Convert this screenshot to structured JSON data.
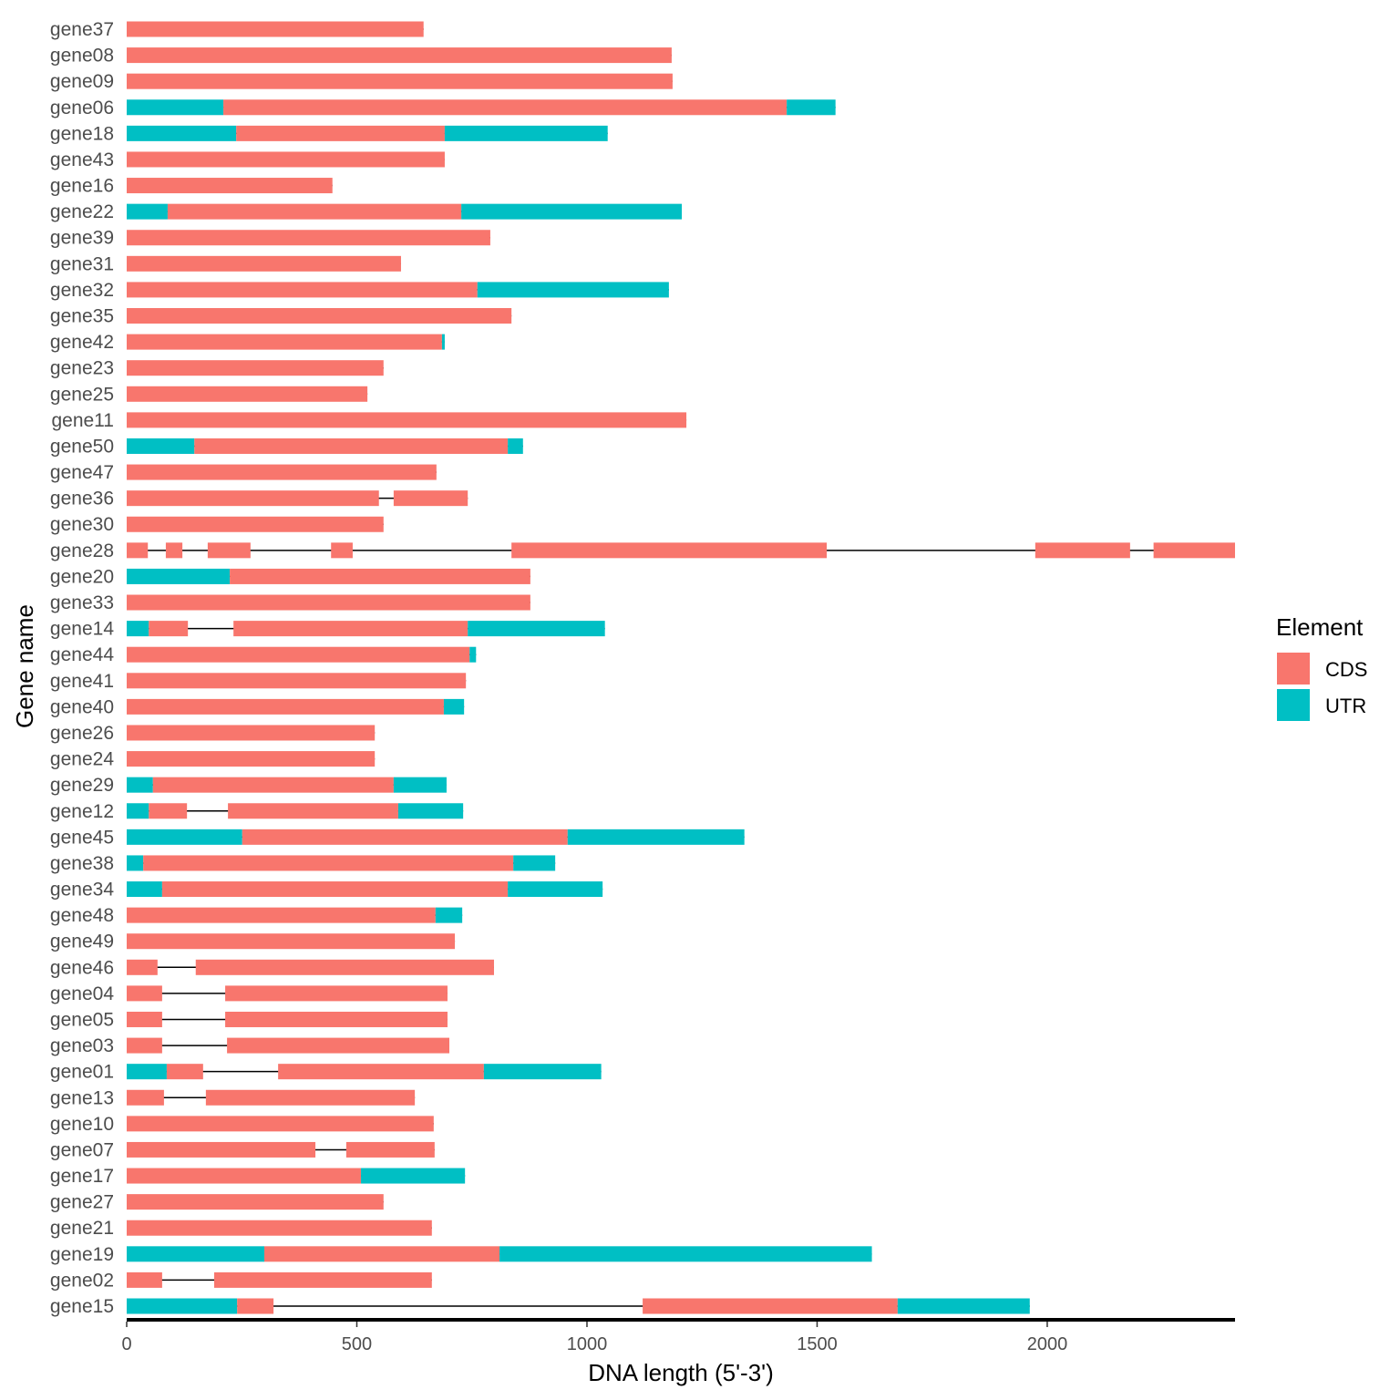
{
  "chart_data": {
    "type": "bar",
    "subtype": "gene-structure",
    "xlabel": "DNA length (5'-3')",
    "ylabel": "Gene name",
    "xlim": [
      0,
      2408
    ],
    "xticks": [
      0,
      500,
      1000,
      1500,
      2000
    ],
    "grid": false,
    "legend": {
      "title": "Element",
      "placement": "right",
      "entries": [
        {
          "label": "CDS",
          "color": "#F8766D"
        },
        {
          "label": "UTR",
          "color": "#00BFC4"
        }
      ]
    },
    "intron_color": "#000000",
    "genes": [
      {
        "name": "gene37",
        "segments": [
          [
            0,
            645,
            "CDS"
          ]
        ]
      },
      {
        "name": "gene08",
        "segments": [
          [
            0,
            1184,
            "CDS"
          ]
        ]
      },
      {
        "name": "gene09",
        "segments": [
          [
            0,
            1186,
            "CDS"
          ]
        ]
      },
      {
        "name": "gene06",
        "segments": [
          [
            0,
            210,
            "UTR"
          ],
          [
            210,
            1434,
            "CDS"
          ],
          [
            1434,
            1540,
            "UTR"
          ]
        ]
      },
      {
        "name": "gene18",
        "segments": [
          [
            0,
            238,
            "UTR"
          ],
          [
            238,
            691,
            "CDS"
          ],
          [
            691,
            1045,
            "UTR"
          ]
        ]
      },
      {
        "name": "gene43",
        "segments": [
          [
            0,
            691,
            "CDS"
          ]
        ]
      },
      {
        "name": "gene16",
        "segments": [
          [
            0,
            447,
            "CDS"
          ]
        ]
      },
      {
        "name": "gene22",
        "segments": [
          [
            0,
            89,
            "UTR"
          ],
          [
            89,
            727,
            "CDS"
          ],
          [
            727,
            1206,
            "UTR"
          ]
        ]
      },
      {
        "name": "gene39",
        "segments": [
          [
            0,
            790,
            "CDS"
          ]
        ]
      },
      {
        "name": "gene31",
        "segments": [
          [
            0,
            596,
            "CDS"
          ]
        ]
      },
      {
        "name": "gene32",
        "segments": [
          [
            0,
            762,
            "CDS"
          ],
          [
            762,
            1178,
            "UTR"
          ]
        ]
      },
      {
        "name": "gene35",
        "segments": [
          [
            0,
            836,
            "CDS"
          ]
        ]
      },
      {
        "name": "gene42",
        "segments": [
          [
            0,
            685,
            "CDS"
          ],
          [
            685,
            691,
            "UTR"
          ]
        ]
      },
      {
        "name": "gene23",
        "segments": [
          [
            0,
            558,
            "CDS"
          ]
        ]
      },
      {
        "name": "gene25",
        "segments": [
          [
            0,
            523,
            "CDS"
          ]
        ]
      },
      {
        "name": "gene11",
        "segments": [
          [
            0,
            1216,
            "CDS"
          ]
        ]
      },
      {
        "name": "gene50",
        "segments": [
          [
            0,
            147,
            "UTR"
          ],
          [
            147,
            828,
            "CDS"
          ],
          [
            828,
            861,
            "UTR"
          ]
        ]
      },
      {
        "name": "gene47",
        "segments": [
          [
            0,
            673,
            "CDS"
          ]
        ]
      },
      {
        "name": "gene36",
        "segments": [
          [
            0,
            548,
            "CDS"
          ],
          [
            580,
            741,
            "CDS"
          ]
        ]
      },
      {
        "name": "gene30",
        "segments": [
          [
            0,
            558,
            "CDS"
          ]
        ]
      },
      {
        "name": "gene28",
        "segments": [
          [
            0,
            46,
            "CDS"
          ],
          [
            85,
            121,
            "CDS"
          ],
          [
            176,
            269,
            "CDS"
          ],
          [
            444,
            491,
            "CDS"
          ],
          [
            836,
            1521,
            "CDS"
          ],
          [
            1974,
            2180,
            "CDS"
          ],
          [
            2231,
            2408,
            "CDS"
          ]
        ]
      },
      {
        "name": "gene20",
        "segments": [
          [
            0,
            224,
            "UTR"
          ],
          [
            224,
            877,
            "CDS"
          ]
        ]
      },
      {
        "name": "gene33",
        "segments": [
          [
            0,
            877,
            "CDS"
          ]
        ]
      },
      {
        "name": "gene14",
        "segments": [
          [
            0,
            48,
            "UTR"
          ],
          [
            48,
            133,
            "CDS"
          ],
          [
            232,
            741,
            "CDS"
          ],
          [
            741,
            1039,
            "UTR"
          ]
        ]
      },
      {
        "name": "gene44",
        "segments": [
          [
            0,
            745,
            "CDS"
          ],
          [
            745,
            759,
            "UTR"
          ]
        ]
      },
      {
        "name": "gene41",
        "segments": [
          [
            0,
            737,
            "CDS"
          ]
        ]
      },
      {
        "name": "gene40",
        "segments": [
          [
            0,
            689,
            "CDS"
          ],
          [
            689,
            733,
            "UTR"
          ]
        ]
      },
      {
        "name": "gene26",
        "segments": [
          [
            0,
            539,
            "CDS"
          ]
        ]
      },
      {
        "name": "gene24",
        "segments": [
          [
            0,
            539,
            "CDS"
          ]
        ]
      },
      {
        "name": "gene29",
        "segments": [
          [
            0,
            57,
            "UTR"
          ],
          [
            57,
            580,
            "CDS"
          ],
          [
            580,
            695,
            "UTR"
          ]
        ]
      },
      {
        "name": "gene12",
        "segments": [
          [
            0,
            48,
            "UTR"
          ],
          [
            48,
            131,
            "CDS"
          ],
          [
            220,
            590,
            "CDS"
          ],
          [
            590,
            731,
            "UTR"
          ]
        ]
      },
      {
        "name": "gene45",
        "segments": [
          [
            0,
            251,
            "UTR"
          ],
          [
            251,
            958,
            "CDS"
          ],
          [
            958,
            1342,
            "UTR"
          ]
        ]
      },
      {
        "name": "gene38",
        "segments": [
          [
            0,
            36,
            "UTR"
          ],
          [
            36,
            840,
            "CDS"
          ],
          [
            840,
            931,
            "UTR"
          ]
        ]
      },
      {
        "name": "gene34",
        "segments": [
          [
            0,
            77,
            "UTR"
          ],
          [
            77,
            828,
            "CDS"
          ],
          [
            828,
            1034,
            "UTR"
          ]
        ]
      },
      {
        "name": "gene48",
        "segments": [
          [
            0,
            671,
            "CDS"
          ],
          [
            671,
            729,
            "UTR"
          ]
        ]
      },
      {
        "name": "gene49",
        "segments": [
          [
            0,
            713,
            "CDS"
          ]
        ]
      },
      {
        "name": "gene46",
        "segments": [
          [
            0,
            67,
            "CDS"
          ],
          [
            150,
            798,
            "CDS"
          ]
        ]
      },
      {
        "name": "gene04",
        "segments": [
          [
            0,
            77,
            "CDS"
          ],
          [
            214,
            697,
            "CDS"
          ]
        ]
      },
      {
        "name": "gene05",
        "segments": [
          [
            0,
            77,
            "CDS"
          ],
          [
            214,
            697,
            "CDS"
          ]
        ]
      },
      {
        "name": "gene03",
        "segments": [
          [
            0,
            77,
            "CDS"
          ],
          [
            218,
            701,
            "CDS"
          ]
        ]
      },
      {
        "name": "gene01",
        "segments": [
          [
            0,
            87,
            "UTR"
          ],
          [
            87,
            166,
            "CDS"
          ],
          [
            329,
            776,
            "CDS"
          ],
          [
            776,
            1031,
            "UTR"
          ]
        ]
      },
      {
        "name": "gene13",
        "segments": [
          [
            0,
            81,
            "CDS"
          ],
          [
            172,
            626,
            "CDS"
          ]
        ]
      },
      {
        "name": "gene10",
        "segments": [
          [
            0,
            667,
            "CDS"
          ]
        ]
      },
      {
        "name": "gene07",
        "segments": [
          [
            0,
            410,
            "CDS"
          ],
          [
            477,
            669,
            "CDS"
          ]
        ]
      },
      {
        "name": "gene17",
        "segments": [
          [
            0,
            509,
            "CDS"
          ],
          [
            509,
            735,
            "UTR"
          ]
        ]
      },
      {
        "name": "gene27",
        "segments": [
          [
            0,
            558,
            "CDS"
          ]
        ]
      },
      {
        "name": "gene21",
        "segments": [
          [
            0,
            663,
            "CDS"
          ]
        ]
      },
      {
        "name": "gene19",
        "segments": [
          [
            0,
            299,
            "UTR"
          ],
          [
            299,
            810,
            "CDS"
          ],
          [
            810,
            1619,
            "UTR"
          ]
        ]
      },
      {
        "name": "gene02",
        "segments": [
          [
            0,
            77,
            "CDS"
          ],
          [
            190,
            663,
            "CDS"
          ]
        ]
      },
      {
        "name": "gene15",
        "segments": [
          [
            0,
            240,
            "UTR"
          ],
          [
            240,
            319,
            "CDS"
          ],
          [
            1121,
            1675,
            "CDS"
          ],
          [
            1675,
            1962,
            "UTR"
          ]
        ]
      }
    ]
  }
}
